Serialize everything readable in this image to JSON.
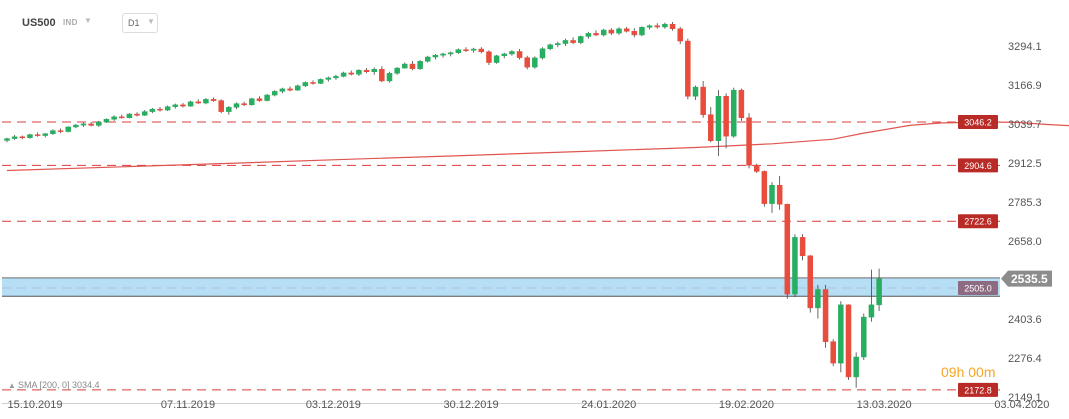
{
  "header": {
    "symbol": "US500",
    "symbol_type": "IND",
    "timeframe": "D1"
  },
  "countdown": "09h 00m",
  "sma_label": "SMA [200, 0] 3034.4",
  "colors": {
    "bull": "#27ae60",
    "bear": "#e74c3c",
    "sma": "#e05550",
    "level_line": "#d63c3c",
    "zone_fill": "#a9d9f5",
    "current_price_bg": "#8c8c8c",
    "axis_text": "#555555"
  },
  "chart_data": {
    "type": "candlestick",
    "y_ticks": [
      "3294.1",
      "3166.9",
      "3039.7",
      "2912.5",
      "2785.3",
      "2658.0",
      "2403.6",
      "2276.4",
      "2149.1"
    ],
    "x_ticks": [
      "15.10.2019",
      "07.11.2019",
      "03.12.2019",
      "30.12.2019",
      "24.01.2020",
      "19.02.2020",
      "13.03.2020",
      "03.04.2020"
    ],
    "ylim": [
      2130,
      3395
    ],
    "current_price": {
      "value": 2535.5,
      "label": "2535.5"
    },
    "levels": [
      {
        "value": 3046.2,
        "label": "3046.2"
      },
      {
        "value": 2904.6,
        "label": "2904.6"
      },
      {
        "value": 2722.6,
        "label": "2722.6"
      },
      {
        "value": 2505.0,
        "label": "2505.0"
      },
      {
        "value": 2172.8,
        "label": "2172.8"
      }
    ],
    "zone": {
      "from": 2478,
      "to": 2538
    },
    "sma": {
      "name": "SMA [200, 0]",
      "last_value": 3034.4,
      "points": [
        [
          0,
          2888
        ],
        [
          15,
          2900
        ],
        [
          30,
          2912
        ],
        [
          45,
          2925
        ],
        [
          60,
          2937
        ],
        [
          75,
          2950
        ],
        [
          90,
          2963
        ],
        [
          100,
          2975
        ],
        [
          108,
          2990
        ],
        [
          112,
          3010
        ],
        [
          118,
          3035
        ],
        [
          122,
          3043
        ],
        [
          128,
          3046
        ],
        [
          132,
          3045
        ],
        [
          136,
          3038
        ],
        [
          139,
          3034
        ]
      ]
    },
    "candles": [
      [
        2986,
        2995,
        2980,
        2992
      ],
      [
        2992,
        3004,
        2988,
        2998
      ],
      [
        2998,
        3002,
        2990,
        2995
      ],
      [
        2995,
        3008,
        2992,
        3005
      ],
      [
        3005,
        3012,
        2998,
        3002
      ],
      [
        3002,
        3010,
        2996,
        3008
      ],
      [
        3008,
        3022,
        3004,
        3018
      ],
      [
        3018,
        3025,
        3010,
        3015
      ],
      [
        3015,
        3032,
        3012,
        3030
      ],
      [
        3030,
        3040,
        3026,
        3036
      ],
      [
        3036,
        3044,
        3030,
        3040
      ],
      [
        3040,
        3046,
        3032,
        3035
      ],
      [
        3035,
        3050,
        3030,
        3046
      ],
      [
        3046,
        3058,
        3043,
        3055
      ],
      [
        3055,
        3068,
        3050,
        3063
      ],
      [
        3063,
        3070,
        3057,
        3060
      ],
      [
        3060,
        3075,
        3058,
        3072
      ],
      [
        3072,
        3078,
        3064,
        3068
      ],
      [
        3068,
        3085,
        3066,
        3080
      ],
      [
        3080,
        3092,
        3075,
        3088
      ],
      [
        3088,
        3095,
        3080,
        3085
      ],
      [
        3085,
        3100,
        3082,
        3096
      ],
      [
        3096,
        3106,
        3090,
        3102
      ],
      [
        3102,
        3108,
        3094,
        3098
      ],
      [
        3098,
        3116,
        3096,
        3112
      ],
      [
        3112,
        3120,
        3105,
        3108
      ],
      [
        3108,
        3124,
        3104,
        3120
      ],
      [
        3120,
        3126,
        3112,
        3116
      ],
      [
        3116,
        3120,
        3075,
        3080
      ],
      [
        3080,
        3098,
        3070,
        3094
      ],
      [
        3094,
        3110,
        3088,
        3106
      ],
      [
        3106,
        3112,
        3098,
        3102
      ],
      [
        3102,
        3125,
        3100,
        3122
      ],
      [
        3122,
        3130,
        3112,
        3116
      ],
      [
        3116,
        3138,
        3114,
        3134
      ],
      [
        3134,
        3150,
        3130,
        3146
      ],
      [
        3146,
        3158,
        3140,
        3154
      ],
      [
        3154,
        3162,
        3146,
        3150
      ],
      [
        3150,
        3168,
        3148,
        3164
      ],
      [
        3164,
        3178,
        3160,
        3175
      ],
      [
        3175,
        3182,
        3168,
        3172
      ],
      [
        3172,
        3188,
        3170,
        3185
      ],
      [
        3185,
        3194,
        3178,
        3190
      ],
      [
        3190,
        3200,
        3184,
        3195
      ],
      [
        3195,
        3210,
        3192,
        3206
      ],
      [
        3206,
        3214,
        3198,
        3202
      ],
      [
        3202,
        3218,
        3196,
        3215
      ],
      [
        3215,
        3222,
        3205,
        3210
      ],
      [
        3210,
        3224,
        3200,
        3218
      ],
      [
        3218,
        3228,
        3176,
        3180
      ],
      [
        3180,
        3210,
        3175,
        3205
      ],
      [
        3205,
        3225,
        3200,
        3222
      ],
      [
        3222,
        3240,
        3220,
        3235
      ],
      [
        3235,
        3245,
        3215,
        3220
      ],
      [
        3220,
        3248,
        3216,
        3244
      ],
      [
        3244,
        3262,
        3240,
        3258
      ],
      [
        3258,
        3268,
        3250,
        3264
      ],
      [
        3264,
        3272,
        3256,
        3268
      ],
      [
        3268,
        3276,
        3260,
        3272
      ],
      [
        3272,
        3286,
        3268,
        3282
      ],
      [
        3282,
        3290,
        3274,
        3280
      ],
      [
        3280,
        3288,
        3272,
        3284
      ],
      [
        3284,
        3290,
        3270,
        3275
      ],
      [
        3275,
        3280,
        3232,
        3240
      ],
      [
        3240,
        3265,
        3236,
        3262
      ],
      [
        3262,
        3272,
        3254,
        3268
      ],
      [
        3268,
        3280,
        3262,
        3276
      ],
      [
        3276,
        3284,
        3250,
        3256
      ],
      [
        3256,
        3262,
        3218,
        3225
      ],
      [
        3225,
        3260,
        3220,
        3255
      ],
      [
        3255,
        3290,
        3250,
        3285
      ],
      [
        3285,
        3302,
        3280,
        3298
      ],
      [
        3298,
        3308,
        3290,
        3302
      ],
      [
        3302,
        3318,
        3294,
        3312
      ],
      [
        3312,
        3322,
        3300,
        3305
      ],
      [
        3305,
        3328,
        3300,
        3325
      ],
      [
        3325,
        3340,
        3318,
        3335
      ],
      [
        3335,
        3345,
        3326,
        3330
      ],
      [
        3330,
        3350,
        3325,
        3346
      ],
      [
        3346,
        3352,
        3330,
        3336
      ],
      [
        3336,
        3355,
        3330,
        3350
      ],
      [
        3350,
        3356,
        3338,
        3342
      ],
      [
        3342,
        3352,
        3322,
        3330
      ],
      [
        3330,
        3358,
        3326,
        3355
      ],
      [
        3355,
        3364,
        3348,
        3360
      ],
      [
        3360,
        3368,
        3350,
        3356
      ],
      [
        3356,
        3370,
        3350,
        3365
      ],
      [
        3365,
        3372,
        3344,
        3350
      ],
      [
        3350,
        3356,
        3300,
        3310
      ],
      [
        3310,
        3318,
        3120,
        3130
      ],
      [
        3130,
        3165,
        3118,
        3160
      ],
      [
        3160,
        3180,
        3060,
        3070
      ],
      [
        3070,
        3095,
        2980,
        2985
      ],
      [
        2985,
        3150,
        2935,
        3130
      ],
      [
        3130,
        3140,
        2960,
        3000
      ],
      [
        3000,
        3158,
        2995,
        3150
      ],
      [
        3150,
        3155,
        3050,
        3060
      ],
      [
        3060,
        3075,
        2895,
        2905
      ],
      [
        2905,
        2910,
        2880,
        2885
      ],
      [
        2885,
        2888,
        2770,
        2780
      ],
      [
        2780,
        2850,
        2750,
        2840
      ],
      [
        2840,
        2870,
        2760,
        2778
      ],
      [
        2778,
        2780,
        2470,
        2485
      ],
      [
        2485,
        2680,
        2475,
        2670
      ],
      [
        2670,
        2680,
        2595,
        2610
      ],
      [
        2610,
        2612,
        2425,
        2440
      ],
      [
        2440,
        2515,
        2405,
        2500
      ],
      [
        2500,
        2515,
        2310,
        2330
      ],
      [
        2330,
        2338,
        2250,
        2260
      ],
      [
        2260,
        2462,
        2230,
        2450
      ],
      [
        2450,
        2452,
        2205,
        2215
      ],
      [
        2215,
        2295,
        2180,
        2280
      ],
      [
        2280,
        2422,
        2270,
        2410
      ],
      [
        2410,
        2565,
        2395,
        2450
      ],
      [
        2450,
        2568,
        2430,
        2535.5
      ]
    ]
  }
}
